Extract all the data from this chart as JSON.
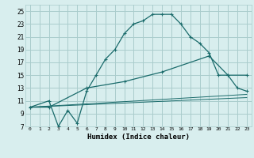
{
  "xlabel": "Humidex (Indice chaleur)",
  "bg_color": "#d8eeee",
  "grid_color": "#aacccc",
  "line_color": "#1a6b6b",
  "xlim": [
    -0.5,
    23.5
  ],
  "ylim": [
    7,
    26
  ],
  "xticks": [
    0,
    1,
    2,
    3,
    4,
    5,
    6,
    7,
    8,
    9,
    10,
    11,
    12,
    13,
    14,
    15,
    16,
    17,
    18,
    19,
    20,
    21,
    22,
    23
  ],
  "yticks": [
    7,
    9,
    11,
    13,
    15,
    17,
    19,
    21,
    23,
    25
  ],
  "line1_x": [
    0,
    2,
    3,
    4,
    5,
    6,
    7,
    8,
    9,
    10,
    11,
    12,
    13,
    14,
    15,
    16,
    17,
    18,
    19,
    20,
    21,
    22,
    23
  ],
  "line1_y": [
    10,
    11,
    7,
    9.5,
    7.5,
    12.5,
    15,
    17.5,
    19,
    21.5,
    23,
    23.5,
    24.5,
    24.5,
    24.5,
    23,
    21,
    20,
    18.5,
    15,
    15,
    13,
    12.5
  ],
  "line2_x": [
    0,
    2,
    6,
    10,
    14,
    19,
    21,
    23
  ],
  "line2_y": [
    10,
    10,
    13,
    14,
    15.5,
    18,
    15,
    15
  ],
  "line3_x": [
    0,
    23
  ],
  "line3_y": [
    10,
    12.0
  ],
  "line4_x": [
    0,
    23
  ],
  "line4_y": [
    10,
    11.5
  ]
}
